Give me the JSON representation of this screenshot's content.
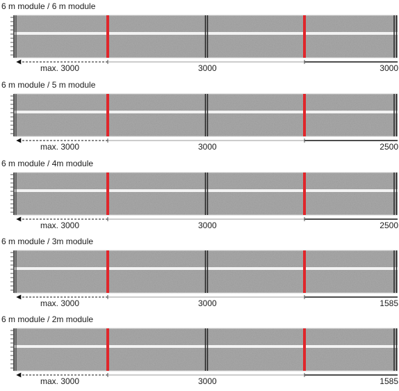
{
  "panels": [
    {
      "title": "6 m module / 6 m module",
      "dims": [
        "max. 3000",
        "3000",
        "3000"
      ]
    },
    {
      "title": "6 m module / 5 m module",
      "dims": [
        "max. 3000",
        "3000",
        "2500"
      ]
    },
    {
      "title": "6 m module / 4m module",
      "dims": [
        "max. 3000",
        "3000",
        "2500"
      ]
    },
    {
      "title": "6 m module / 3m module",
      "dims": [
        "max. 3000",
        "3000",
        "1585"
      ]
    },
    {
      "title": "6 m module / 2m module",
      "dims": [
        "max. 3000",
        "3000",
        "1585"
      ]
    }
  ],
  "colors": {
    "joint": "#e0262b",
    "panel": "#a9a9a9",
    "stripe": "#f2f2f2",
    "end": "#222222"
  }
}
